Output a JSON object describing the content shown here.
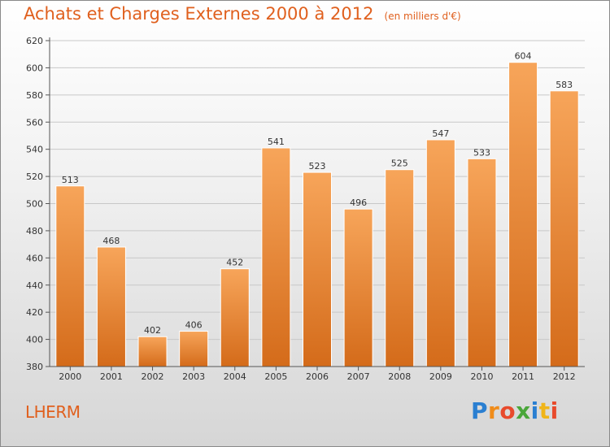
{
  "header": {
    "title": "Achats et Charges Externes 2000 à 2012",
    "subtitle": "(en milliers d'€)"
  },
  "footer": {
    "commune": "LHERM",
    "brand": "Proxiti",
    "brand_letters": [
      {
        "ch": "P",
        "color": "#2a7fd1"
      },
      {
        "ch": "r",
        "color": "#f08c1a"
      },
      {
        "ch": "o",
        "color": "#e84a2c"
      },
      {
        "ch": "x",
        "color": "#4aa63a"
      },
      {
        "ch": "i",
        "color": "#2a7fd1"
      },
      {
        "ch": "t",
        "color": "#f0b51a"
      },
      {
        "ch": "i",
        "color": "#e84a2c"
      }
    ]
  },
  "colors": {
    "title": "#e0601e",
    "bar_top": "#f7a55a",
    "bar_bottom": "#d46b1a",
    "axis": "#555555",
    "grid": "#c8c8c8"
  },
  "chart_data": {
    "type": "bar",
    "categories": [
      "2000",
      "2001",
      "2002",
      "2003",
      "2004",
      "2005",
      "2006",
      "2007",
      "2008",
      "2009",
      "2010",
      "2011",
      "2012"
    ],
    "values": [
      513,
      468,
      402,
      406,
      452,
      541,
      523,
      496,
      525,
      547,
      533,
      604,
      583
    ],
    "ylim": [
      380,
      620
    ],
    "yticks": [
      380,
      400,
      420,
      440,
      460,
      480,
      500,
      520,
      540,
      560,
      580,
      600,
      620
    ],
    "title": "Achats et Charges Externes 2000 à 2012",
    "xlabel": "",
    "ylabel": "",
    "grid": true
  }
}
